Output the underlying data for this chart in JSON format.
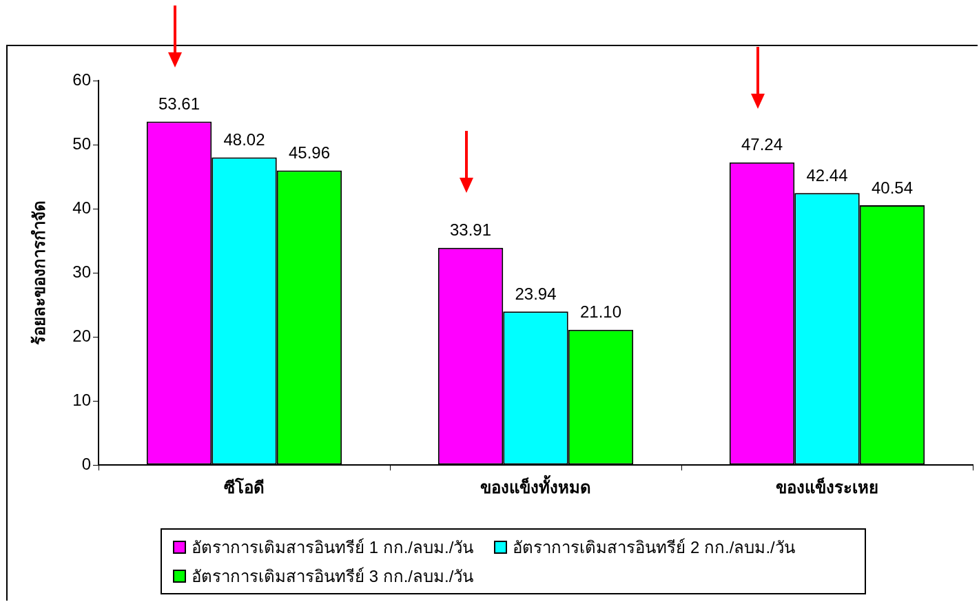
{
  "chart_data": {
    "type": "bar",
    "ylabel": "ร้อยละของการกำจัด",
    "categories": [
      "ซีโอดี",
      "ของแข็งทั้งหมด",
      "ของแข็งระเหย"
    ],
    "series": [
      {
        "name": "อัตราการเติมสารอินทรีย์ 1 กก./ลบม./วัน",
        "color": "#ff00ff",
        "values": [
          53.61,
          33.91,
          47.24
        ],
        "value_labels": [
          "53.61",
          "33.91",
          "47.24"
        ]
      },
      {
        "name": "อัตราการเติมสารอินทรีย์ 2 กก./ลบม./วัน",
        "color": "#00ffff",
        "values": [
          48.02,
          23.94,
          42.44
        ],
        "value_labels": [
          "48.02",
          "23.94",
          "42.44"
        ]
      },
      {
        "name": "อัตราการเติมสารอินทรีย์ 3 กก./ลบม./วัน",
        "color": "#00ff00",
        "values": [
          45.96,
          21.1,
          40.54
        ],
        "value_labels": [
          "45.96",
          "21.10",
          "40.54"
        ]
      }
    ],
    "ylim": [
      0,
      60
    ],
    "yticks": [
      0,
      10,
      20,
      30,
      40,
      50,
      60
    ],
    "grid": false,
    "legend": "bottom"
  }
}
